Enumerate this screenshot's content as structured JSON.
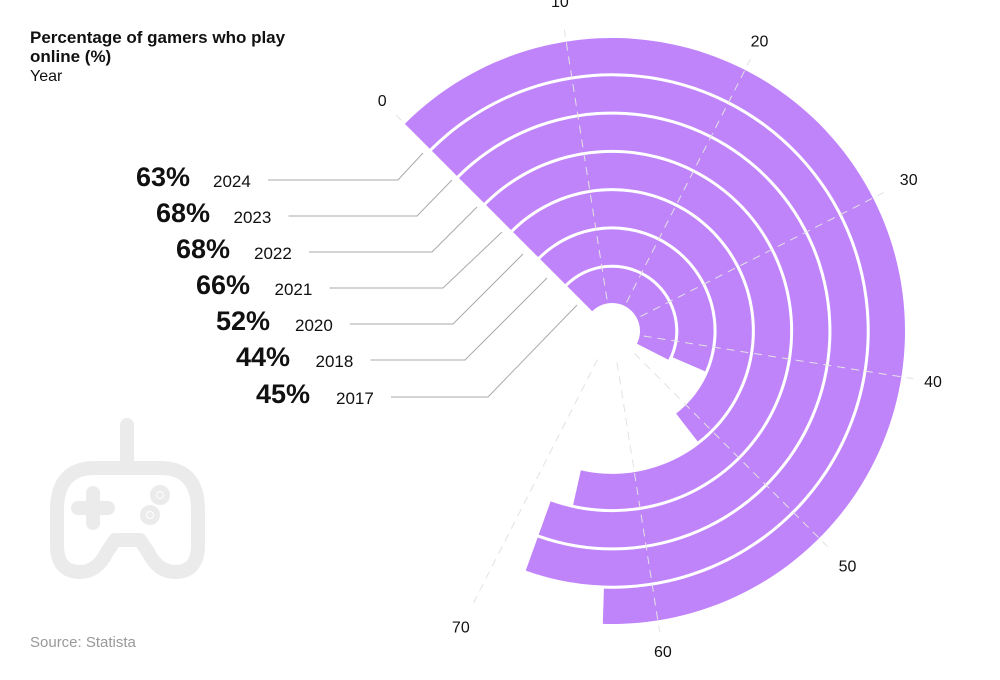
{
  "chart_data": {
    "type": "radial-bar",
    "title": "Percentage of gamers who play online (%)",
    "subtitle": "Year",
    "source": "Source: Statista",
    "categories": [
      "2024",
      "2023",
      "2022",
      "2021",
      "2020",
      "2018",
      "2017"
    ],
    "values": [
      63,
      68,
      68,
      66,
      52,
      44,
      45
    ],
    "value_labels": [
      "63%",
      "68%",
      "68%",
      "66%",
      "52%",
      "44%",
      "45%"
    ],
    "axis_ticks": [
      0,
      10,
      20,
      30,
      40,
      50,
      60,
      70
    ],
    "axis_range": [
      0,
      100
    ],
    "bar_color": "#c084fa",
    "icon": "game-controller-icon"
  }
}
